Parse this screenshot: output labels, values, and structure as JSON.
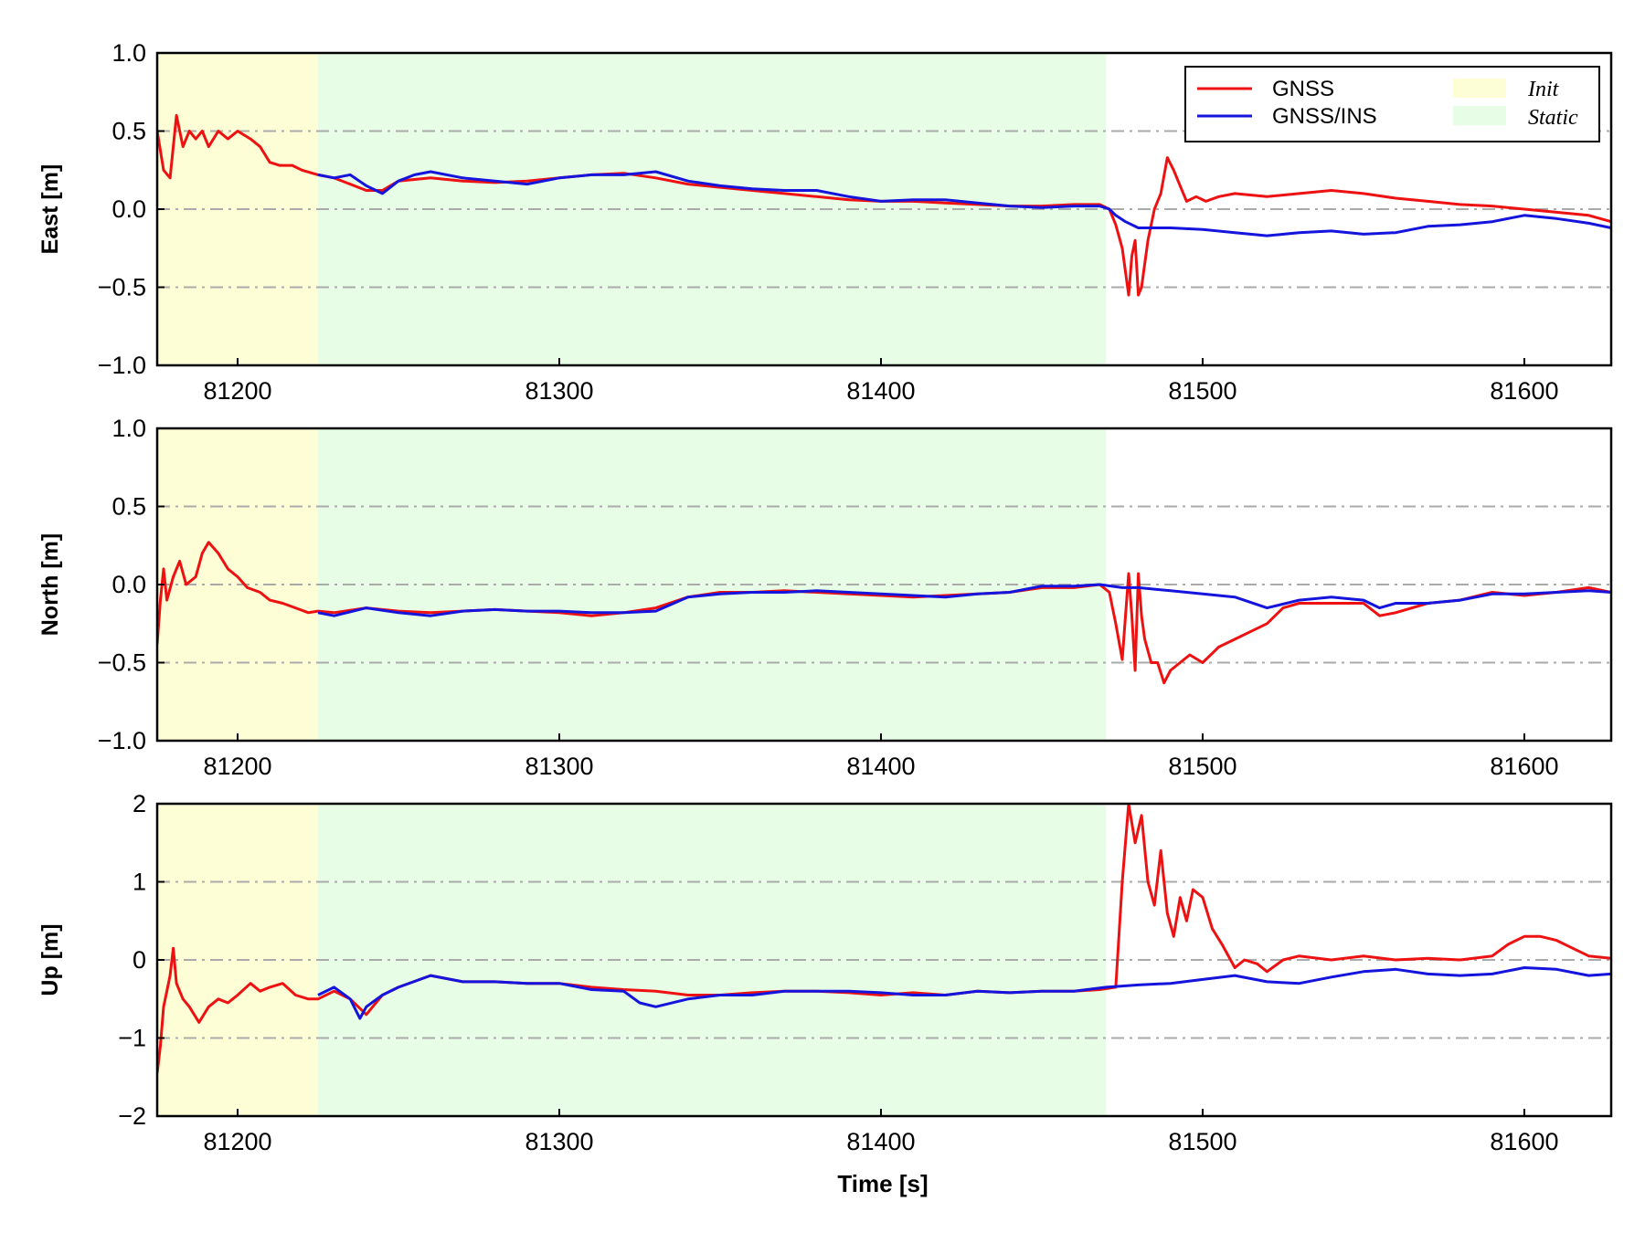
{
  "colors": {
    "gnss": "#ee1111",
    "gnss_ins": "#1414dd",
    "init_band": "#fdfdd6",
    "static_band": "#e8fde6",
    "grid": "#aaaaaa"
  },
  "legend": {
    "placement": "top-right",
    "entries": [
      {
        "label": "GNSS",
        "type": "line",
        "color": "#ee1111"
      },
      {
        "label": "GNSS/INS",
        "type": "line",
        "color": "#1414dd"
      },
      {
        "label": "Init",
        "type": "patch",
        "color": "#fdfdd6"
      },
      {
        "label": "Static",
        "type": "patch",
        "color": "#e8fde6"
      }
    ]
  },
  "chart_data": [
    {
      "type": "line",
      "ylabel": "East [m]",
      "xlim": [
        81175,
        81627
      ],
      "ylim": [
        -1.0,
        1.0
      ],
      "yticks": [
        "1.0",
        "0.5",
        "0.0",
        "−0.5",
        "−1.0"
      ],
      "ytick_values": [
        1.0,
        0.5,
        0.0,
        -0.5,
        -1.0
      ],
      "xticks": [
        "81200",
        "81300",
        "81400",
        "81500",
        "81600"
      ],
      "xtick_values": [
        81200,
        81300,
        81400,
        81500,
        81600
      ],
      "grid": "dash-dot horizontal",
      "bands": [
        {
          "label": "Init",
          "x": [
            81175,
            81225
          ]
        },
        {
          "label": "Static",
          "x": [
            81225,
            81470
          ]
        }
      ],
      "series": [
        {
          "name": "GNSS",
          "x": [
            81175,
            81177,
            81179,
            81181,
            81183,
            81185,
            81187,
            81189,
            81191,
            81194,
            81197,
            81200,
            81204,
            81207,
            81210,
            81213,
            81217,
            81220,
            81225,
            81230,
            81240,
            81245,
            81250,
            81260,
            81270,
            81280,
            81290,
            81300,
            81310,
            81320,
            81330,
            81340,
            81350,
            81360,
            81370,
            81380,
            81390,
            81400,
            81410,
            81420,
            81430,
            81440,
            81450,
            81460,
            81468,
            81471,
            81473,
            81475,
            81477,
            81478,
            81479,
            81480,
            81481,
            81483,
            81485,
            81487,
            81489,
            81491,
            81493,
            81495,
            81498,
            81501,
            81505,
            81510,
            81520,
            81530,
            81540,
            81550,
            81560,
            81570,
            81580,
            81590,
            81600,
            81610,
            81620,
            81627
          ],
          "values": [
            0.5,
            0.25,
            0.2,
            0.6,
            0.4,
            0.5,
            0.45,
            0.5,
            0.4,
            0.5,
            0.45,
            0.5,
            0.45,
            0.4,
            0.3,
            0.28,
            0.28,
            0.25,
            0.22,
            0.2,
            0.12,
            0.12,
            0.18,
            0.2,
            0.18,
            0.17,
            0.18,
            0.2,
            0.22,
            0.23,
            0.2,
            0.16,
            0.14,
            0.12,
            0.1,
            0.08,
            0.06,
            0.05,
            0.05,
            0.04,
            0.03,
            0.02,
            0.02,
            0.03,
            0.03,
            0.0,
            -0.1,
            -0.25,
            -0.55,
            -0.3,
            -0.2,
            -0.55,
            -0.5,
            -0.2,
            0.0,
            0.1,
            0.33,
            0.25,
            0.15,
            0.05,
            0.08,
            0.05,
            0.08,
            0.1,
            0.08,
            0.1,
            0.12,
            0.1,
            0.07,
            0.05,
            0.03,
            0.02,
            0.0,
            -0.02,
            -0.04,
            -0.08
          ]
        },
        {
          "name": "GNSS/INS",
          "x": [
            81225,
            81230,
            81235,
            81240,
            81245,
            81250,
            81255,
            81260,
            81270,
            81280,
            81290,
            81300,
            81310,
            81320,
            81330,
            81340,
            81350,
            81360,
            81370,
            81380,
            81390,
            81400,
            81410,
            81420,
            81430,
            81440,
            81450,
            81460,
            81468,
            81471,
            81473,
            81476,
            81480,
            81490,
            81500,
            81510,
            81520,
            81530,
            81540,
            81550,
            81560,
            81570,
            81580,
            81590,
            81600,
            81610,
            81620,
            81627
          ],
          "values": [
            0.22,
            0.2,
            0.22,
            0.15,
            0.1,
            0.18,
            0.22,
            0.24,
            0.2,
            0.18,
            0.16,
            0.2,
            0.22,
            0.22,
            0.24,
            0.18,
            0.15,
            0.13,
            0.12,
            0.12,
            0.08,
            0.05,
            0.06,
            0.06,
            0.04,
            0.02,
            0.01,
            0.02,
            0.02,
            0.0,
            -0.04,
            -0.08,
            -0.12,
            -0.12,
            -0.13,
            -0.15,
            -0.17,
            -0.15,
            -0.14,
            -0.16,
            -0.15,
            -0.11,
            -0.1,
            -0.08,
            -0.04,
            -0.06,
            -0.09,
            -0.12
          ]
        }
      ]
    },
    {
      "type": "line",
      "ylabel": "North [m]",
      "xlim": [
        81175,
        81627
      ],
      "ylim": [
        -1.0,
        1.0
      ],
      "yticks": [
        "1.0",
        "0.5",
        "0.0",
        "−0.5",
        "−1.0"
      ],
      "ytick_values": [
        1.0,
        0.5,
        0.0,
        -0.5,
        -1.0
      ],
      "xticks": [
        "81200",
        "81300",
        "81400",
        "81500",
        "81600"
      ],
      "xtick_values": [
        81200,
        81300,
        81400,
        81500,
        81600
      ],
      "grid": "dash-dot horizontal",
      "bands": [
        {
          "label": "Init",
          "x": [
            81175,
            81225
          ]
        },
        {
          "label": "Static",
          "x": [
            81225,
            81470
          ]
        }
      ],
      "series": [
        {
          "name": "GNSS",
          "x": [
            81175,
            81176,
            81177,
            81178,
            81180,
            81182,
            81184,
            81187,
            81189,
            81191,
            81194,
            81197,
            81200,
            81203,
            81207,
            81210,
            81214,
            81218,
            81222,
            81225,
            81230,
            81240,
            81250,
            81260,
            81270,
            81280,
            81290,
            81300,
            81310,
            81320,
            81330,
            81340,
            81350,
            81360,
            81370,
            81380,
            81390,
            81400,
            81410,
            81420,
            81430,
            81440,
            81450,
            81460,
            81468,
            81471,
            81473,
            81475,
            81477,
            81478,
            81479,
            81480,
            81481,
            81482,
            81484,
            81486,
            81488,
            81490,
            81493,
            81496,
            81500,
            81505,
            81510,
            81515,
            81520,
            81525,
            81530,
            81540,
            81550,
            81555,
            81560,
            81570,
            81580,
            81590,
            81600,
            81610,
            81620,
            81627
          ],
          "values": [
            -0.38,
            -0.1,
            0.1,
            -0.1,
            0.05,
            0.15,
            0.0,
            0.05,
            0.2,
            0.27,
            0.2,
            0.1,
            0.05,
            -0.02,
            -0.05,
            -0.1,
            -0.12,
            -0.15,
            -0.18,
            -0.17,
            -0.18,
            -0.15,
            -0.17,
            -0.18,
            -0.17,
            -0.16,
            -0.17,
            -0.18,
            -0.2,
            -0.18,
            -0.15,
            -0.08,
            -0.05,
            -0.05,
            -0.04,
            -0.05,
            -0.06,
            -0.07,
            -0.08,
            -0.07,
            -0.06,
            -0.05,
            -0.02,
            -0.02,
            0.0,
            -0.05,
            -0.25,
            -0.48,
            0.07,
            -0.2,
            -0.55,
            0.07,
            -0.2,
            -0.35,
            -0.5,
            -0.5,
            -0.63,
            -0.55,
            -0.5,
            -0.45,
            -0.5,
            -0.4,
            -0.35,
            -0.3,
            -0.25,
            -0.15,
            -0.12,
            -0.12,
            -0.12,
            -0.2,
            -0.18,
            -0.12,
            -0.1,
            -0.05,
            -0.07,
            -0.05,
            -0.02,
            -0.05
          ]
        },
        {
          "name": "GNSS/INS",
          "x": [
            81225,
            81230,
            81240,
            81250,
            81260,
            81270,
            81280,
            81290,
            81300,
            81310,
            81320,
            81330,
            81340,
            81350,
            81360,
            81370,
            81380,
            81390,
            81400,
            81410,
            81420,
            81430,
            81440,
            81450,
            81460,
            81468,
            81475,
            81480,
            81490,
            81500,
            81510,
            81520,
            81530,
            81540,
            81550,
            81555,
            81560,
            81570,
            81580,
            81590,
            81600,
            81610,
            81620,
            81627
          ],
          "values": [
            -0.18,
            -0.2,
            -0.15,
            -0.18,
            -0.2,
            -0.17,
            -0.16,
            -0.17,
            -0.17,
            -0.18,
            -0.18,
            -0.17,
            -0.08,
            -0.06,
            -0.05,
            -0.05,
            -0.04,
            -0.05,
            -0.06,
            -0.07,
            -0.08,
            -0.06,
            -0.05,
            -0.01,
            -0.01,
            0.0,
            -0.02,
            -0.02,
            -0.04,
            -0.06,
            -0.08,
            -0.15,
            -0.1,
            -0.08,
            -0.1,
            -0.15,
            -0.12,
            -0.12,
            -0.1,
            -0.06,
            -0.06,
            -0.05,
            -0.04,
            -0.05
          ]
        }
      ]
    },
    {
      "type": "line",
      "ylabel": "Up [m]",
      "xlabel": "Time [s]",
      "xlim": [
        81175,
        81627
      ],
      "ylim": [
        -2,
        2
      ],
      "yticks": [
        "2",
        "1",
        "0",
        "−1",
        "−2"
      ],
      "ytick_values": [
        2,
        1,
        0,
        -1,
        -2
      ],
      "xticks": [
        "81200",
        "81300",
        "81400",
        "81500",
        "81600"
      ],
      "xtick_values": [
        81200,
        81300,
        81400,
        81500,
        81600
      ],
      "grid": "dash-dot horizontal",
      "bands": [
        {
          "label": "Init",
          "x": [
            81175,
            81225
          ]
        },
        {
          "label": "Static",
          "x": [
            81225,
            81470
          ]
        }
      ],
      "series": [
        {
          "name": "GNSS",
          "x": [
            81175,
            81176,
            81177,
            81178,
            81179,
            81180,
            81181,
            81183,
            81185,
            81188,
            81191,
            81194,
            81197,
            81200,
            81204,
            81207,
            81210,
            81214,
            81218,
            81222,
            81225,
            81230,
            81235,
            81240,
            81245,
            81250,
            81260,
            81270,
            81280,
            81290,
            81300,
            81310,
            81320,
            81330,
            81340,
            81350,
            81360,
            81370,
            81380,
            81390,
            81400,
            81410,
            81420,
            81430,
            81440,
            81450,
            81460,
            81468,
            81473,
            81475,
            81477,
            81479,
            81481,
            81483,
            81485,
            81487,
            81489,
            81491,
            81493,
            81495,
            81497,
            81500,
            81503,
            81506,
            81510,
            81513,
            81517,
            81520,
            81525,
            81530,
            81540,
            81550,
            81560,
            81570,
            81580,
            81590,
            81595,
            81600,
            81605,
            81610,
            81615,
            81620,
            81627
          ],
          "values": [
            -1.45,
            -1.1,
            -0.6,
            -0.4,
            -0.2,
            0.15,
            -0.3,
            -0.5,
            -0.6,
            -0.8,
            -0.6,
            -0.5,
            -0.55,
            -0.45,
            -0.3,
            -0.4,
            -0.35,
            -0.3,
            -0.45,
            -0.5,
            -0.5,
            -0.4,
            -0.5,
            -0.7,
            -0.45,
            -0.35,
            -0.2,
            -0.28,
            -0.28,
            -0.3,
            -0.3,
            -0.35,
            -0.38,
            -0.4,
            -0.45,
            -0.45,
            -0.42,
            -0.4,
            -0.4,
            -0.42,
            -0.45,
            -0.42,
            -0.45,
            -0.4,
            -0.42,
            -0.4,
            -0.4,
            -0.38,
            -0.35,
            1.0,
            2.0,
            1.5,
            1.85,
            1.0,
            0.7,
            1.4,
            0.6,
            0.3,
            0.8,
            0.5,
            0.9,
            0.8,
            0.4,
            0.2,
            -0.1,
            0.0,
            -0.05,
            -0.15,
            0.0,
            0.05,
            0.0,
            0.05,
            0.0,
            0.02,
            0.0,
            0.05,
            0.2,
            0.3,
            0.3,
            0.25,
            0.15,
            0.05,
            0.02
          ]
        },
        {
          "name": "GNSS/INS",
          "x": [
            81225,
            81230,
            81235,
            81238,
            81240,
            81245,
            81250,
            81260,
            81270,
            81280,
            81290,
            81300,
            81310,
            81320,
            81325,
            81330,
            81340,
            81350,
            81360,
            81370,
            81380,
            81390,
            81400,
            81410,
            81420,
            81430,
            81440,
            81450,
            81460,
            81470,
            81480,
            81490,
            81500,
            81510,
            81520,
            81530,
            81540,
            81550,
            81560,
            81570,
            81580,
            81590,
            81600,
            81610,
            81620,
            81627
          ],
          "values": [
            -0.45,
            -0.35,
            -0.5,
            -0.75,
            -0.6,
            -0.45,
            -0.35,
            -0.2,
            -0.28,
            -0.28,
            -0.3,
            -0.3,
            -0.38,
            -0.4,
            -0.55,
            -0.6,
            -0.5,
            -0.45,
            -0.45,
            -0.4,
            -0.4,
            -0.4,
            -0.42,
            -0.45,
            -0.45,
            -0.4,
            -0.42,
            -0.4,
            -0.4,
            -0.35,
            -0.32,
            -0.3,
            -0.25,
            -0.2,
            -0.28,
            -0.3,
            -0.22,
            -0.15,
            -0.12,
            -0.18,
            -0.2,
            -0.18,
            -0.1,
            -0.12,
            -0.2,
            -0.18
          ]
        }
      ]
    }
  ]
}
